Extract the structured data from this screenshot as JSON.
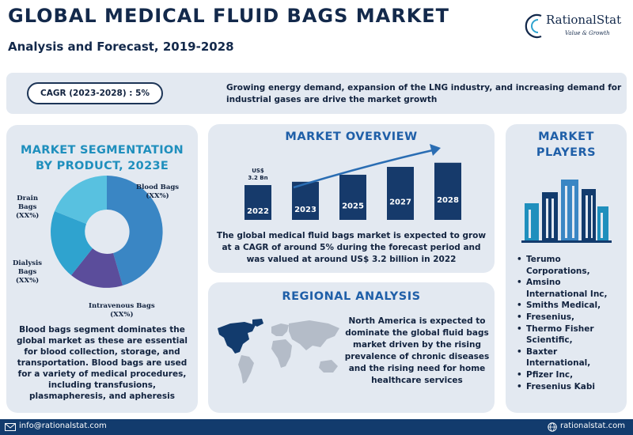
{
  "header": {
    "title": "GLOBAL MEDICAL FLUID BAGS MARKET",
    "subtitle": "Analysis and Forecast, 2019-2028"
  },
  "brand": {
    "name": "RationalStat",
    "tagline": "Value & Growth",
    "logo_icon": "rationalstat-logo-icon"
  },
  "highlight": {
    "cagr_label": "CAGR (2023-2028) : 5%",
    "growth_text": "Growing energy demand, expansion of the LNG industry, and increasing demand for industrial gases are drive the market growth"
  },
  "segmentation": {
    "title_line1": "MARKET SEGMENTATION",
    "title_line2": "BY  PRODUCT, 2023E",
    "segments": [
      {
        "name": "Blood Bags",
        "share_label": "(XX%)",
        "color": "#3a86c4"
      },
      {
        "name": "Intravenous Bags",
        "share_label": "(XX%)",
        "color": "#5b4d9b"
      },
      {
        "name": "Dialysis Bags",
        "share_label": "(XX%)",
        "color": "#2fa3cf"
      },
      {
        "name": "Drain Bags",
        "share_label": "(XX%)",
        "color": "#58c1e0"
      }
    ],
    "label_lines": {
      "blood": [
        "Blood Bags",
        "(XX%)"
      ],
      "drain": [
        "Drain",
        "Bags",
        "(XX%)"
      ],
      "dialysis": [
        "Dialysis",
        "Bags",
        "(XX%)"
      ],
      "intravenous": [
        "Intravenous Bags",
        "(XX%)"
      ]
    },
    "description": "Blood bags segment dominates the global market as these are essential for blood collection, storage, and transportation. Blood bags are used for a variety of medical procedures, including transfusions, plasmapheresis, and apheresis"
  },
  "overview": {
    "title": "MARKET OVERVIEW",
    "bar_annotation_line1": "US$",
    "bar_annotation_line2": "3.2 Bn",
    "description": "The  global medical fluid bags market is expected to grow at a CAGR of around 5% during the forecast period and was valued at around US$ 3.2 billion in 2022",
    "bar_color": "#163a6b",
    "arrow_color": "#2a6db3"
  },
  "chart_data": {
    "type": "bar",
    "categories": [
      "2022",
      "2023",
      "2025",
      "2027",
      "2028"
    ],
    "values": [
      3.2,
      3.36,
      3.7,
      4.08,
      4.28
    ],
    "title": "",
    "xlabel": "",
    "ylabel": "",
    "ylim": [
      0,
      4.5
    ],
    "grid": false,
    "data_label": "US$ 3.2 Bn",
    "data_label_category": "2022"
  },
  "regional": {
    "title": "REGIONAL ANALYSIS",
    "description": "North America is expected to dominate the global fluid bags market driven by the rising prevalence of chronic diseases and the rising need for home healthcare services",
    "highlight_region": "North America",
    "highlight_color": "#123b6d",
    "map_color": "#b4bcc8"
  },
  "players": {
    "title_line1": "MARKET",
    "title_line2": "PLAYERS",
    "icon": "city-buildings-icon",
    "items": [
      [
        "Terumo",
        "Corporations,"
      ],
      [
        "Amsino",
        "International Inc,"
      ],
      [
        "Smiths Medical,"
      ],
      [
        "Fresenius,"
      ],
      [
        "Thermo Fisher",
        "Scientific,"
      ],
      [
        "Baxter",
        "International,"
      ],
      [
        "Pfizer Inc,"
      ],
      [
        "Fresenius Kabi"
      ]
    ]
  },
  "footer": {
    "email": "info@rationalstat.com",
    "website": "rationalstat.com",
    "email_icon": "envelope-icon",
    "web_icon": "globe-icon",
    "background": "#123b6d"
  }
}
